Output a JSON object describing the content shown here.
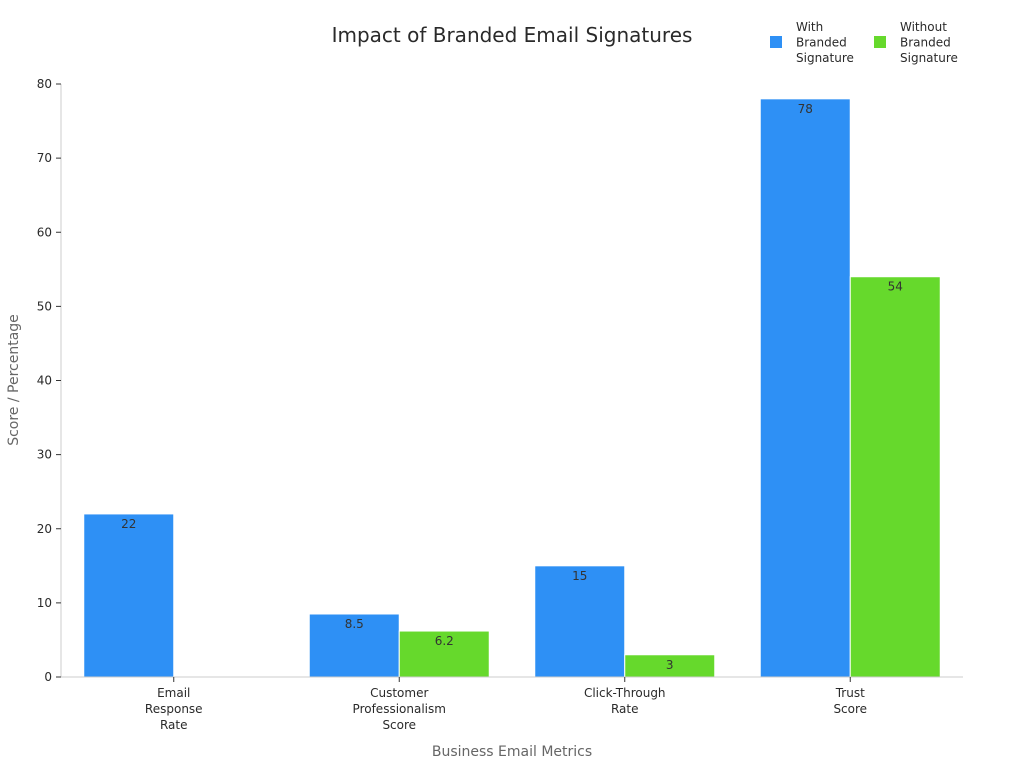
{
  "chart_data": {
    "type": "bar",
    "title": "Impact of Branded Email Signatures",
    "xlabel": "Business Email Metrics",
    "ylabel": "Score / Percentage",
    "categories": [
      "Email Response Rate",
      "Customer Professionalism Score",
      "Click-Through Rate",
      "Trust Score"
    ],
    "category_lines": [
      [
        "Email",
        "Response",
        "Rate"
      ],
      [
        "Customer",
        "Professionalism",
        "Score"
      ],
      [
        "Click-Through",
        "Rate"
      ],
      [
        "Trust",
        "Score"
      ]
    ],
    "series": [
      {
        "name": "With Branded Signature",
        "name_lines": [
          "With",
          "Branded",
          "Signature"
        ],
        "color": "#2E90F5",
        "values": [
          22,
          8.5,
          15,
          78
        ]
      },
      {
        "name": "Without Branded Signature",
        "name_lines": [
          "Without",
          "Branded",
          "Signature"
        ],
        "color": "#66D92C",
        "values": [
          null,
          6.2,
          3,
          54
        ]
      }
    ],
    "ylim": [
      0,
      80
    ],
    "yticks": [
      0,
      10,
      20,
      30,
      40,
      50,
      60,
      70,
      80
    ],
    "grid": false,
    "legend_position": "top-right"
  }
}
